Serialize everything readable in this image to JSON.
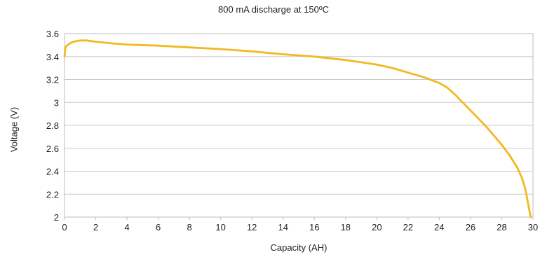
{
  "chart_data": {
    "type": "line",
    "title": "800 mA discharge at 150ºC",
    "xlabel": "Capacity (AH)",
    "ylabel": "Voltage (V)",
    "xlim": [
      0,
      30
    ],
    "ylim": [
      2,
      3.6
    ],
    "x_ticks": [
      0,
      2,
      4,
      6,
      8,
      10,
      12,
      14,
      16,
      18,
      20,
      22,
      24,
      26,
      28,
      30
    ],
    "y_ticks": [
      2,
      2.2,
      2.4,
      2.6,
      2.8,
      3,
      3.2,
      3.4,
      3.6
    ],
    "x_tick_labels": [
      "0",
      "2",
      "4",
      "6",
      "8",
      "10",
      "12",
      "14",
      "16",
      "18",
      "20",
      "22",
      "24",
      "26",
      "28",
      "30"
    ],
    "y_tick_labels": [
      "2",
      "2.2",
      "2.4",
      "2.6",
      "2.8",
      "3",
      "3.2",
      "3.4",
      "3.6"
    ],
    "grid": true,
    "series_color": "#f2b91f",
    "series": [
      {
        "x": [
          0,
          0.05,
          0.1,
          0.2,
          0.4,
          0.6,
          1.0,
          1.4,
          2,
          3,
          4,
          6,
          8,
          10,
          12,
          14,
          16,
          18,
          19,
          20,
          21,
          22,
          23,
          24,
          24.5,
          25,
          25.5,
          26,
          26.5,
          27,
          27.5,
          28,
          28.5,
          29,
          29.3,
          29.5,
          29.6,
          29.7,
          29.8,
          29.85
        ],
        "y": [
          3.4,
          3.47,
          3.49,
          3.5,
          3.52,
          3.53,
          3.54,
          3.54,
          3.53,
          3.515,
          3.505,
          3.495,
          3.48,
          3.465,
          3.445,
          3.42,
          3.4,
          3.37,
          3.35,
          3.33,
          3.3,
          3.26,
          3.22,
          3.17,
          3.13,
          3.07,
          3.0,
          2.93,
          2.86,
          2.79,
          2.71,
          2.63,
          2.54,
          2.43,
          2.34,
          2.25,
          2.18,
          2.11,
          2.04,
          2.0
        ]
      }
    ]
  }
}
